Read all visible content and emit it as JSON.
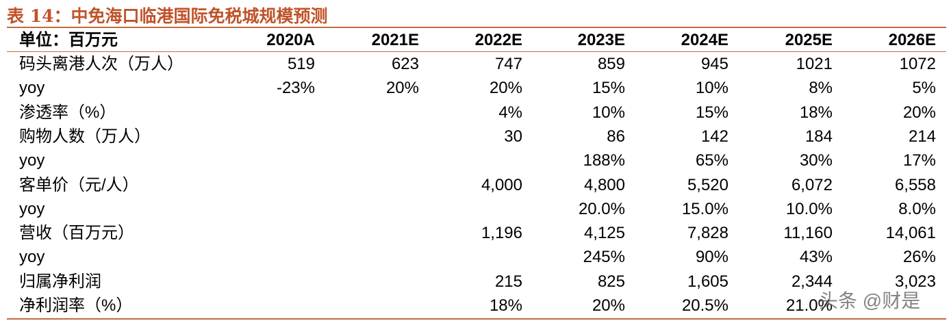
{
  "header": {
    "title": "表 14：中免海口临港国际免税城规模预测"
  },
  "table": {
    "columns": [
      "单位：百万元",
      "2020A",
      "2021E",
      "2022E",
      "2023E",
      "2024E",
      "2025E",
      "2026E"
    ],
    "rows": [
      [
        "码头离港人次（万人）",
        "519",
        "623",
        "747",
        "859",
        "945",
        "1021",
        "1072"
      ],
      [
        "yoy",
        "-23%",
        "20%",
        "20%",
        "15%",
        "10%",
        "8%",
        "5%"
      ],
      [
        "渗透率（%）",
        null,
        null,
        "4%",
        "10%",
        "15%",
        "18%",
        "20%"
      ],
      [
        "购物人数（万人）",
        null,
        null,
        "30",
        "86",
        "142",
        "184",
        "214"
      ],
      [
        "yoy",
        null,
        null,
        null,
        "188%",
        "65%",
        "30%",
        "17%"
      ],
      [
        "客单价（元/人）",
        null,
        null,
        "4,000",
        "4,800",
        "5,520",
        "6,072",
        "6,558"
      ],
      [
        "yoy",
        null,
        null,
        null,
        "20.0%",
        "15.0%",
        "10.0%",
        "8.0%"
      ],
      [
        "营收（百万元）",
        null,
        null,
        "1,196",
        "4,125",
        "7,828",
        "11,160",
        "14,061"
      ],
      [
        "yoy",
        null,
        null,
        null,
        "245%",
        "90%",
        "43%",
        "26%"
      ],
      [
        "归属净利润",
        null,
        null,
        "215",
        "825",
        "1,605",
        "2,344",
        "3,023"
      ],
      [
        "净利润率（%）",
        null,
        null,
        "18%",
        "20%",
        "20.5%",
        "21.0%",
        null
      ]
    ]
  },
  "watermark": "头条 @财是"
}
